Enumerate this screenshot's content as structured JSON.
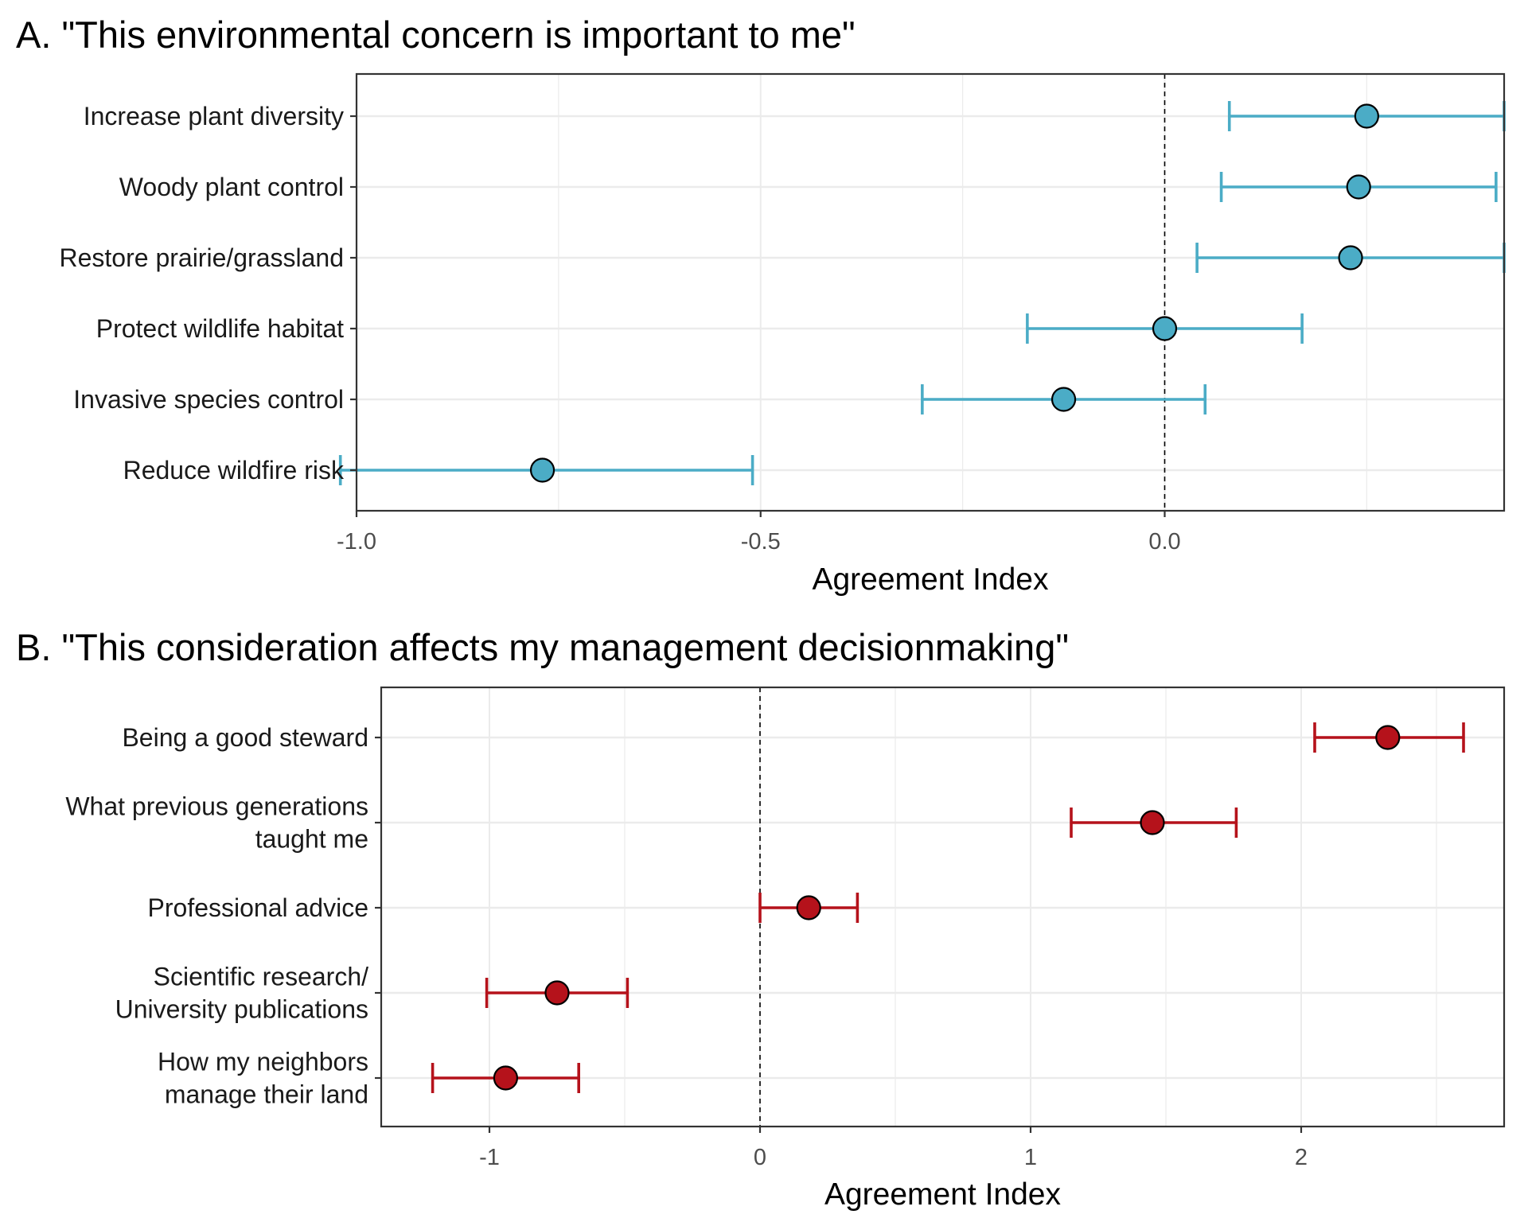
{
  "chart_data": [
    {
      "type": "errorbar",
      "title": "A. \"This environmental concern is important to me\"",
      "xlabel": "Agreement Index",
      "ylabel": "",
      "xlim": [
        -1.0,
        0.42
      ],
      "xticks": [
        -1.0,
        -0.5,
        0.0
      ],
      "xtick_labels": [
        "-1.0",
        "-0.5",
        "0.0"
      ],
      "reference_line": 0,
      "grid": true,
      "color": "#4bacc6",
      "categories": [
        [
          "Increase plant diversity"
        ],
        [
          "Woody plant control"
        ],
        [
          "Restore prairie/grassland"
        ],
        [
          "Protect wildlife habitat"
        ],
        [
          "Invasive species control"
        ],
        [
          "Reduce wildfire risk"
        ]
      ],
      "points": [
        {
          "value": 0.25,
          "low": 0.08,
          "high": 0.42
        },
        {
          "value": 0.24,
          "low": 0.07,
          "high": 0.41
        },
        {
          "value": 0.23,
          "low": 0.04,
          "high": 0.42
        },
        {
          "value": 0.0,
          "low": -0.17,
          "high": 0.17
        },
        {
          "value": -0.125,
          "low": -0.3,
          "high": 0.05
        },
        {
          "value": -0.77,
          "low": -1.02,
          "high": -0.51
        }
      ]
    },
    {
      "type": "errorbar",
      "title": "B. \"This consideration affects my management decisionmaking\"",
      "xlabel": "Agreement Index",
      "ylabel": "",
      "xlim": [
        -1.4,
        2.75
      ],
      "xticks": [
        -1,
        0,
        1,
        2
      ],
      "xtick_labels": [
        "-1",
        "0",
        "1",
        "2"
      ],
      "reference_line": 0,
      "grid": true,
      "color": "#b5121b",
      "categories": [
        [
          "Being a good steward"
        ],
        [
          "What previous generations",
          "taught me"
        ],
        [
          "Professional advice"
        ],
        [
          "Scientific research/",
          "University publications"
        ],
        [
          "How my neighbors",
          "manage their land"
        ]
      ],
      "points": [
        {
          "value": 2.32,
          "low": 2.05,
          "high": 2.6
        },
        {
          "value": 1.45,
          "low": 1.15,
          "high": 1.76
        },
        {
          "value": 0.18,
          "low": 0.0,
          "high": 0.36
        },
        {
          "value": -0.75,
          "low": -1.01,
          "high": -0.49
        },
        {
          "value": -0.94,
          "low": -1.21,
          "high": -0.67
        }
      ]
    }
  ]
}
